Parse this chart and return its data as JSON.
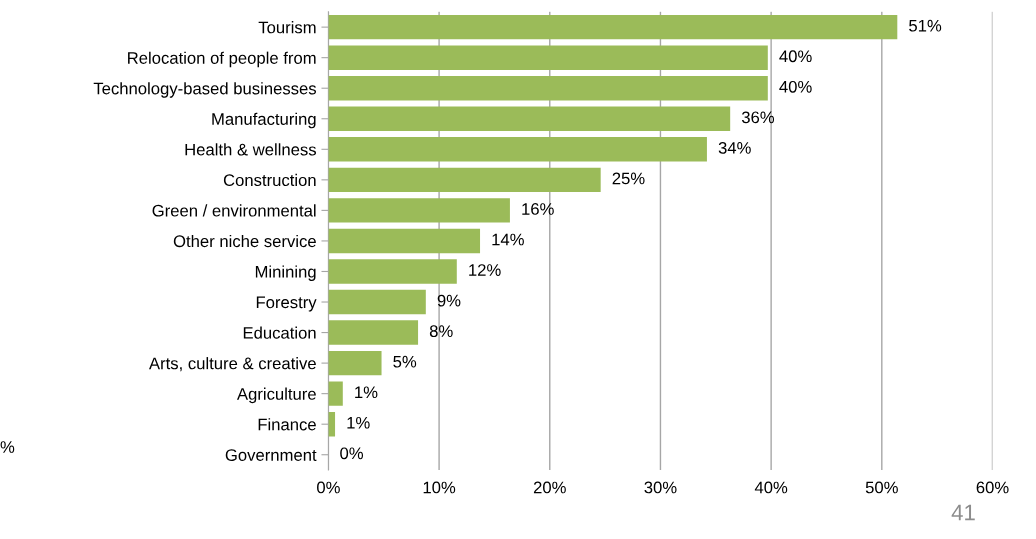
{
  "chart_data": {
    "type": "bar",
    "orientation": "horizontal",
    "categories": [
      "Tourism",
      "Relocation of people from",
      "Technology-based businesses",
      "Manufacturing",
      "Health & wellness",
      "Construction",
      "Green / environmental",
      "Other niche service",
      "Minining",
      "Forestry",
      "Education",
      "Arts, culture & creative",
      "Agriculture",
      "Finance",
      "Government"
    ],
    "values": [
      51.4,
      39.7,
      39.7,
      36.3,
      34.2,
      24.6,
      16.4,
      13.7,
      11.6,
      8.8,
      8.1,
      4.8,
      1.3,
      0.6,
      0
    ],
    "value_labels": [
      "51%",
      "40%",
      "40%",
      "36%",
      "34%",
      "25%",
      "16%",
      "14%",
      "12%",
      "9%",
      "8%",
      "5%",
      "1%",
      "1%",
      "0%"
    ],
    "color": "#9bbb59",
    "xlim": [
      0,
      60
    ],
    "xticks": [
      {
        "value": 0,
        "label": "0%"
      },
      {
        "value": 10,
        "label": "10%"
      },
      {
        "value": 20,
        "label": "20%"
      },
      {
        "value": 30,
        "label": "30%"
      },
      {
        "value": 40,
        "label": "40%"
      },
      {
        "value": 50,
        "label": "50%"
      },
      {
        "value": 60,
        "label": "60%"
      }
    ],
    "grid": "x",
    "annotations": [
      "%",
      "41"
    ]
  }
}
